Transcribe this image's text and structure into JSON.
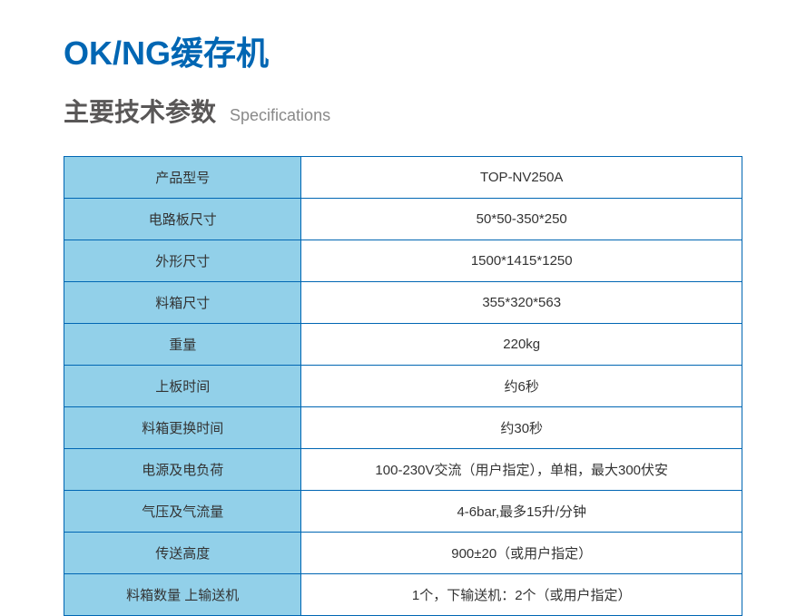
{
  "colors": {
    "title": "#0066b3",
    "subtitle_zh": "#595757",
    "subtitle_en": "#898989",
    "border": "#0066b3",
    "label_bg": "#92d0e9",
    "text": "#333333"
  },
  "fonts": {
    "title_size": 36,
    "subtitle_zh_size": 28,
    "subtitle_en_size": 18,
    "table_size": 15
  },
  "title": "OK/NG缓存机",
  "subtitle_zh": "主要技术参数",
  "subtitle_en": "Specifications",
  "specs": [
    {
      "label": "产品型号",
      "value": "TOP-NV250A"
    },
    {
      "label": "电路板尺寸",
      "value": "50*50-350*250"
    },
    {
      "label": "外形尺寸",
      "value": "1500*1415*1250"
    },
    {
      "label": "料箱尺寸",
      "value": "355*320*563"
    },
    {
      "label": "重量",
      "value": "220kg"
    },
    {
      "label": "上板时间",
      "value": "约6秒"
    },
    {
      "label": "料箱更换时间",
      "value": "约30秒"
    },
    {
      "label": "电源及电负荷",
      "value": "100-230V交流（用户指定），单相，最大300伏安"
    },
    {
      "label": "气压及气流量",
      "value": "4-6bar,最多15升/分钟"
    },
    {
      "label": "传送高度",
      "value": "900±20（或用户指定）"
    },
    {
      "label": "料箱数量 上输送机",
      "value": "1个，下输送机：2个（或用户指定）"
    }
  ]
}
